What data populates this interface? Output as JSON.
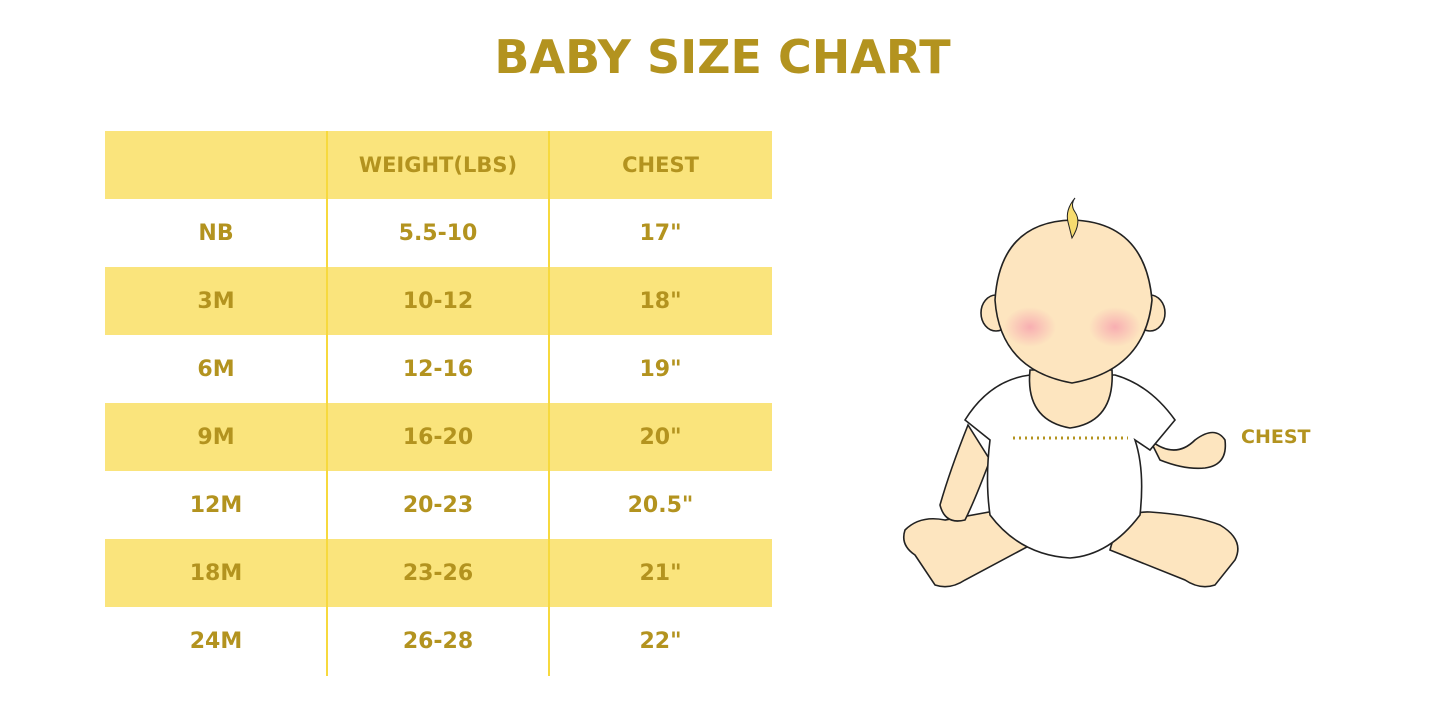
{
  "title": "BABY SIZE CHART",
  "table": {
    "headers": [
      "",
      "WEIGHT(LBS)",
      "CHEST"
    ],
    "rows": [
      [
        "NB",
        "5.5-10",
        "17\""
      ],
      [
        "3M",
        "10-12",
        "18\""
      ],
      [
        "6M",
        "12-16",
        "19\""
      ],
      [
        "9M",
        "16-20",
        "20\""
      ],
      [
        "12M",
        "20-23",
        "20.5\""
      ],
      [
        "18M",
        "23-26",
        "21\""
      ],
      [
        "24M",
        "26-28",
        "22\""
      ]
    ]
  },
  "illustration": {
    "chest_label": "CHEST"
  },
  "colors": {
    "text": "#b3931f",
    "band": "#fae47c",
    "divider": "#f7d93e",
    "skin": "#fde5bf"
  }
}
